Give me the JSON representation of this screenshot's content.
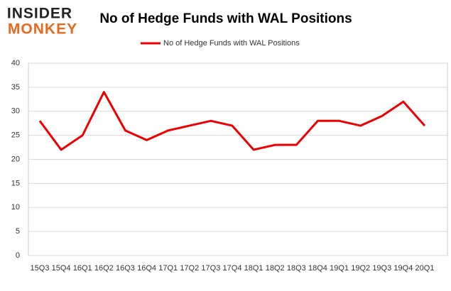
{
  "logo": {
    "top": "INSIDER",
    "bottom": "MONKEY"
  },
  "chart_data": {
    "type": "line",
    "title": "No of Hedge Funds with WAL Positions",
    "categories": [
      "15Q3",
      "15Q4",
      "16Q1",
      "16Q2",
      "16Q3",
      "16Q4",
      "17Q1",
      "17Q2",
      "17Q3",
      "17Q4",
      "18Q1",
      "18Q2",
      "18Q3",
      "18Q4",
      "19Q1",
      "19Q2",
      "19Q3",
      "19Q4",
      "20Q1"
    ],
    "series": [
      {
        "name": "No of Hedge Funds with WAL Positions",
        "color": "#ee0000",
        "values": [
          28,
          22,
          25,
          34,
          26,
          24,
          26,
          27,
          28,
          27,
          22,
          23,
          23,
          28,
          28,
          27,
          29,
          32,
          27
        ]
      }
    ],
    "ylim": [
      0,
      40
    ],
    "yticks": [
      0,
      5,
      10,
      15,
      20,
      25,
      30,
      35,
      40
    ],
    "grid": true,
    "legend": "top"
  }
}
